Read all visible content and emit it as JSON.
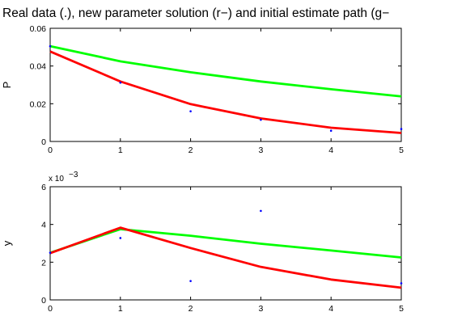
{
  "title": "Real data (.), new parameter solution (r−) and initial estimate path (g−",
  "colors": {
    "new_solution": "#ff0000",
    "initial_estimate": "#00ff00",
    "real_data": "#0000ff",
    "axes": "#000000"
  },
  "chart_data": [
    {
      "type": "line",
      "ylabel": "P",
      "xlim": [
        0,
        5
      ],
      "ylim": [
        0,
        0.06
      ],
      "x_ticks": [
        0,
        1,
        2,
        3,
        4,
        5
      ],
      "x_tick_labels": [
        "0",
        "1",
        "2",
        "3",
        "4",
        "5"
      ],
      "y_ticks": [
        0,
        0.02,
        0.04,
        0.06
      ],
      "y_tick_labels": [
        "0",
        "0.02",
        "0.04",
        "0.06"
      ],
      "multiplier_label": "",
      "x": [
        0,
        1,
        2,
        3,
        4,
        5
      ],
      "series": [
        {
          "key": "initial",
          "style": "line",
          "color": "#00ff00",
          "values": [
            0.0505,
            0.0425,
            0.0367,
            0.0318,
            0.0277,
            0.0239
          ]
        },
        {
          "key": "new",
          "style": "line",
          "color": "#ff0000",
          "values": [
            0.0477,
            0.0318,
            0.0198,
            0.0122,
            0.0073,
            0.0045
          ]
        },
        {
          "key": "real",
          "style": "dots",
          "color": "#0000ff",
          "values": [
            0.0505,
            0.0312,
            0.016,
            0.0115,
            0.0057,
            0.0066
          ]
        }
      ]
    },
    {
      "type": "line",
      "ylabel": "y",
      "xlim": [
        0,
        5
      ],
      "ylim": [
        0,
        0.006
      ],
      "x_ticks": [
        0,
        1,
        2,
        3,
        4,
        5
      ],
      "x_tick_labels": [
        "0",
        "1",
        "2",
        "3",
        "4",
        "5"
      ],
      "y_ticks": [
        0,
        0.002,
        0.004,
        0.006
      ],
      "y_tick_labels": [
        "0",
        "2",
        "4",
        "6"
      ],
      "multiplier_label": "x 10",
      "multiplier_exp": "−3",
      "x": [
        0,
        1,
        2,
        3,
        4,
        5
      ],
      "series": [
        {
          "key": "initial",
          "style": "line",
          "color": "#00ff00",
          "values": [
            0.0025,
            0.00375,
            0.0034,
            0.00298,
            0.00262,
            0.00225
          ]
        },
        {
          "key": "new",
          "style": "line",
          "color": "#ff0000",
          "values": [
            0.00248,
            0.00383,
            0.00275,
            0.00175,
            0.00108,
            0.00065
          ]
        },
        {
          "key": "real",
          "style": "dots",
          "color": "#0000ff",
          "values": [
            0.0025,
            0.00328,
            0.001,
            0.00472,
            null,
            0.00088
          ]
        }
      ]
    }
  ]
}
